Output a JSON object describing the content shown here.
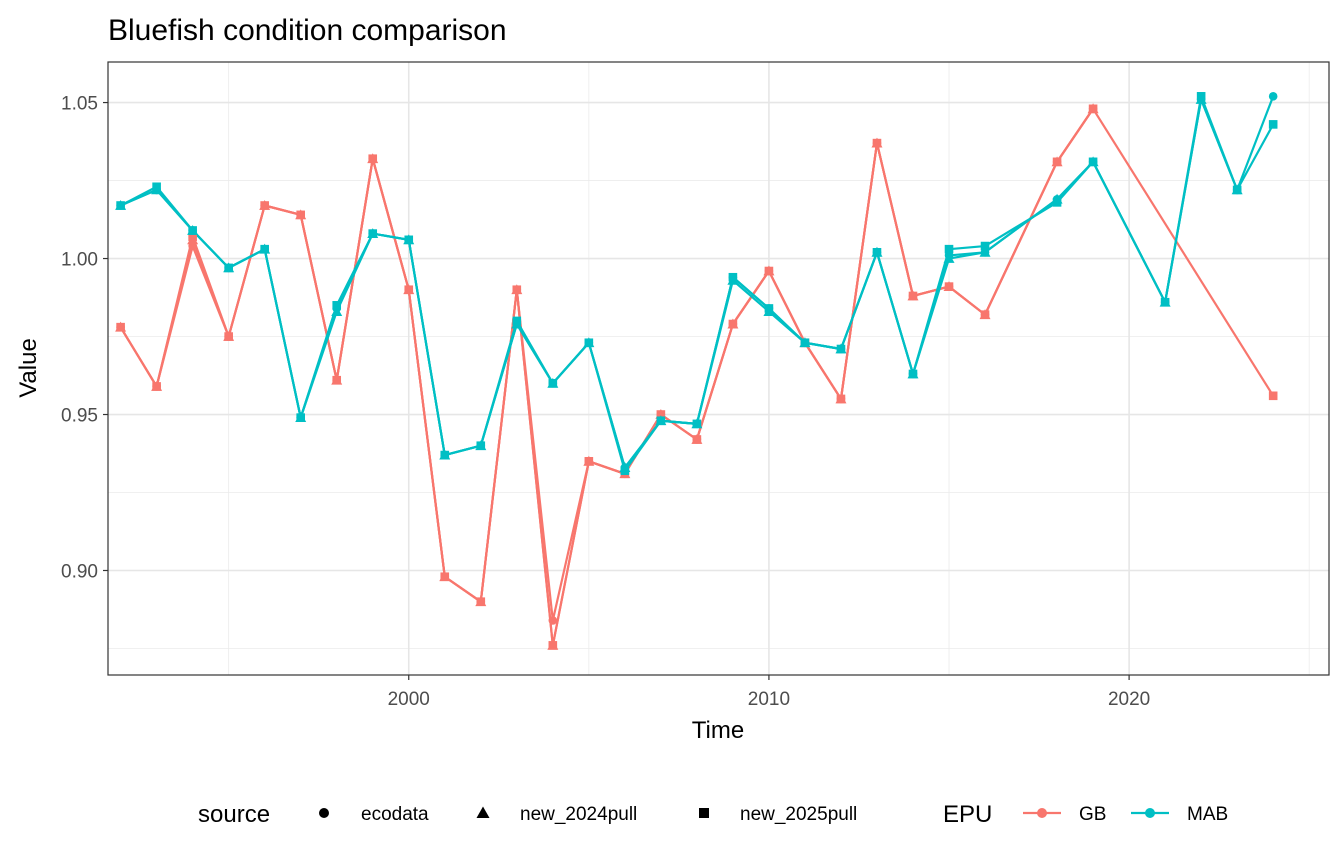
{
  "chart_data": {
    "type": "line",
    "title": "Bluefish condition comparison",
    "xlabel": "Time",
    "ylabel": "Value",
    "xlim": [
      1991.65,
      2025.55
    ],
    "ylim": [
      0.8665,
      1.063
    ],
    "x_ticks": [
      2000,
      2010,
      2020
    ],
    "x_tick_labels": [
      "2000",
      "2010",
      "2020"
    ],
    "y_ticks": [
      0.9,
      0.95,
      1.0,
      1.05
    ],
    "y_tick_labels": [
      "0.90",
      "0.95",
      "1.00",
      "1.05"
    ],
    "x_minor": [
      1995,
      2005,
      2015,
      2025
    ],
    "y_minor": [
      0.875,
      0.925,
      0.975,
      1.025
    ],
    "grid": true,
    "legend_position": "bottom",
    "legend": {
      "shape_title": "source",
      "shape_items": [
        {
          "label": "ecodata",
          "shape": "circle"
        },
        {
          "label": "new_2024pull",
          "shape": "triangle"
        },
        {
          "label": "new_2025pull",
          "shape": "square"
        }
      ],
      "color_title": "EPU",
      "color_items": [
        {
          "label": "GB",
          "color": "#F8766D"
        },
        {
          "label": "MAB",
          "color": "#00BFC4"
        }
      ]
    },
    "series": [
      {
        "name": "GB",
        "source": "ecodata",
        "shape": "circle",
        "color": "#F8766D",
        "x": [
          1992,
          1993,
          1994,
          1995,
          1996,
          1997,
          1998,
          1999,
          2000,
          2001,
          2002,
          2003,
          2004,
          2005,
          2006,
          2007,
          2008,
          2009,
          2010,
          2011,
          2012,
          2013,
          2014,
          2015,
          2016,
          2018,
          2019
        ],
        "y": [
          0.978,
          0.959,
          1.004,
          0.975,
          1.017,
          1.014,
          0.961,
          1.032,
          0.99,
          0.898,
          0.89,
          0.99,
          0.884,
          0.935,
          0.931,
          0.95,
          0.942,
          0.979,
          0.996,
          0.973,
          0.955,
          1.037,
          0.988,
          0.991,
          0.982,
          1.031,
          1.048
        ]
      },
      {
        "name": "GB",
        "source": "new_2024pull",
        "shape": "triangle",
        "color": "#F8766D",
        "x": [
          1992,
          1993,
          1994,
          1995,
          1996,
          1997,
          1998,
          1999,
          2000,
          2001,
          2002,
          2003,
          2004,
          2005,
          2006,
          2007,
          2008,
          2009,
          2010,
          2011,
          2012,
          2013,
          2014,
          2015,
          2016,
          2018,
          2019
        ],
        "y": [
          0.978,
          0.959,
          1.006,
          0.975,
          1.017,
          1.014,
          0.961,
          1.032,
          0.99,
          0.898,
          0.89,
          0.99,
          0.876,
          0.935,
          0.931,
          0.95,
          0.942,
          0.979,
          0.996,
          0.973,
          0.955,
          1.037,
          0.988,
          0.991,
          0.982,
          1.031,
          1.048
        ]
      },
      {
        "name": "GB",
        "source": "new_2025pull",
        "shape": "square",
        "color": "#F8766D",
        "x": [
          1992,
          1993,
          1994,
          1995,
          1996,
          1997,
          1998,
          1999,
          2000,
          2001,
          2002,
          2003,
          2004,
          2005,
          2006,
          2007,
          2008,
          2009,
          2010,
          2011,
          2012,
          2013,
          2014,
          2015,
          2016,
          2018,
          2019,
          2024
        ],
        "y": [
          0.978,
          0.959,
          1.007,
          0.975,
          1.017,
          1.014,
          0.961,
          1.032,
          0.99,
          0.898,
          0.89,
          0.99,
          0.876,
          0.935,
          0.931,
          0.95,
          0.942,
          0.979,
          0.996,
          0.973,
          0.955,
          1.037,
          0.988,
          0.991,
          0.982,
          1.031,
          1.048,
          0.956
        ]
      },
      {
        "name": "MAB",
        "source": "ecodata",
        "shape": "circle",
        "color": "#00BFC4",
        "x": [
          1992,
          1993,
          1994,
          1995,
          1996,
          1997,
          1998,
          1999,
          2000,
          2001,
          2002,
          2003,
          2004,
          2005,
          2006,
          2007,
          2008,
          2009,
          2010,
          2011,
          2012,
          2013,
          2014,
          2015,
          2016,
          2018,
          2019,
          2021,
          2022,
          2023,
          2024
        ],
        "y": [
          1.017,
          1.022,
          1.009,
          0.997,
          1.003,
          0.949,
          0.984,
          1.008,
          1.006,
          0.937,
          0.94,
          0.979,
          0.96,
          0.973,
          0.933,
          0.948,
          0.947,
          0.994,
          0.984,
          0.973,
          0.971,
          1.002,
          0.963,
          1.001,
          1.002,
          1.019,
          1.031,
          0.986,
          1.051,
          1.022,
          1.052
        ]
      },
      {
        "name": "MAB",
        "source": "new_2024pull",
        "shape": "triangle",
        "color": "#00BFC4",
        "x": [
          1992,
          1993,
          1994,
          1995,
          1996,
          1997,
          1998,
          1999,
          2000,
          2001,
          2002,
          2003,
          2004,
          2005,
          2006,
          2007,
          2008,
          2009,
          2010,
          2011,
          2012,
          2013,
          2014,
          2015,
          2016,
          2018,
          2019,
          2021,
          2022,
          2023
        ],
        "y": [
          1.017,
          1.022,
          1.009,
          0.997,
          1.003,
          0.949,
          0.983,
          1.008,
          1.006,
          0.937,
          0.94,
          0.979,
          0.96,
          0.973,
          0.933,
          0.948,
          0.947,
          0.993,
          0.983,
          0.973,
          0.971,
          1.002,
          0.963,
          1.0,
          1.002,
          1.019,
          1.031,
          0.986,
          1.051,
          1.022
        ]
      },
      {
        "name": "MAB",
        "source": "new_2025pull",
        "shape": "square",
        "color": "#00BFC4",
        "x": [
          1992,
          1993,
          1994,
          1995,
          1996,
          1997,
          1998,
          1999,
          2000,
          2001,
          2002,
          2003,
          2004,
          2005,
          2006,
          2007,
          2008,
          2009,
          2010,
          2011,
          2012,
          2013,
          2014,
          2015,
          2016,
          2018,
          2019,
          2021,
          2022,
          2023,
          2024
        ],
        "y": [
          1.017,
          1.023,
          1.009,
          0.997,
          1.003,
          0.949,
          0.985,
          1.008,
          1.006,
          0.937,
          0.94,
          0.98,
          0.96,
          0.973,
          0.932,
          0.948,
          0.947,
          0.994,
          0.984,
          0.973,
          0.971,
          1.002,
          0.963,
          1.003,
          1.004,
          1.018,
          1.031,
          0.986,
          1.052,
          1.022,
          1.043
        ]
      }
    ]
  }
}
